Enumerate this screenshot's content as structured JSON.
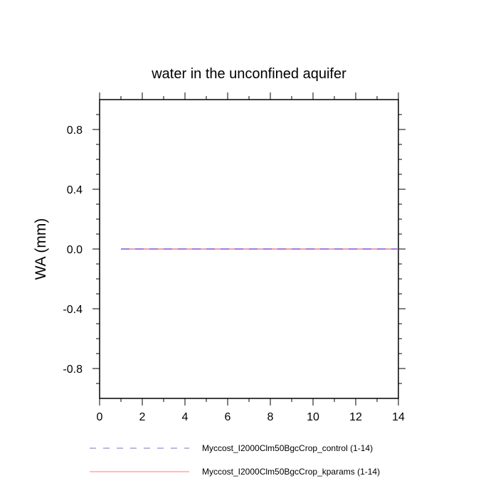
{
  "chart_data": {
    "type": "line",
    "title": "water in the unconfined aquifer",
    "xlabel": "",
    "ylabel": "WA  (mm)",
    "xlim": [
      0,
      14
    ],
    "ylim": [
      -1,
      1
    ],
    "xticks": [
      0,
      2,
      4,
      6,
      8,
      10,
      12,
      14
    ],
    "xtick_labels": [
      "0",
      "2",
      "4",
      "6",
      "8",
      "10",
      "12",
      "14"
    ],
    "yticks": [
      -0.8,
      -0.4,
      0.0,
      0.4,
      0.8
    ],
    "ytick_labels": [
      "-0.8",
      "-0.4",
      "0.0",
      "0.4",
      "0.8"
    ],
    "grid": false,
    "legend": "bottom",
    "series": [
      {
        "name": "Myccost_I2000Clm50BgcCrop_control (1-14)",
        "color": "#7b68ee",
        "dash": "dashed",
        "x": [
          1,
          2,
          3,
          4,
          5,
          6,
          7,
          8,
          9,
          10,
          11,
          12,
          13,
          14
        ],
        "y": [
          0,
          0,
          0,
          0,
          0,
          0,
          0,
          0,
          0,
          0,
          0,
          0,
          0,
          0
        ]
      },
      {
        "name": "Myccost_I2000Clm50BgcCrop_kparams (1-14)",
        "color": "#f08080",
        "dash": "solid",
        "x": [
          1,
          2,
          3,
          4,
          5,
          6,
          7,
          8,
          9,
          10,
          11,
          12,
          13,
          14
        ],
        "y": [
          0,
          0,
          0,
          0,
          0,
          0,
          0,
          0,
          0,
          0,
          0,
          0,
          0,
          0
        ]
      }
    ]
  }
}
